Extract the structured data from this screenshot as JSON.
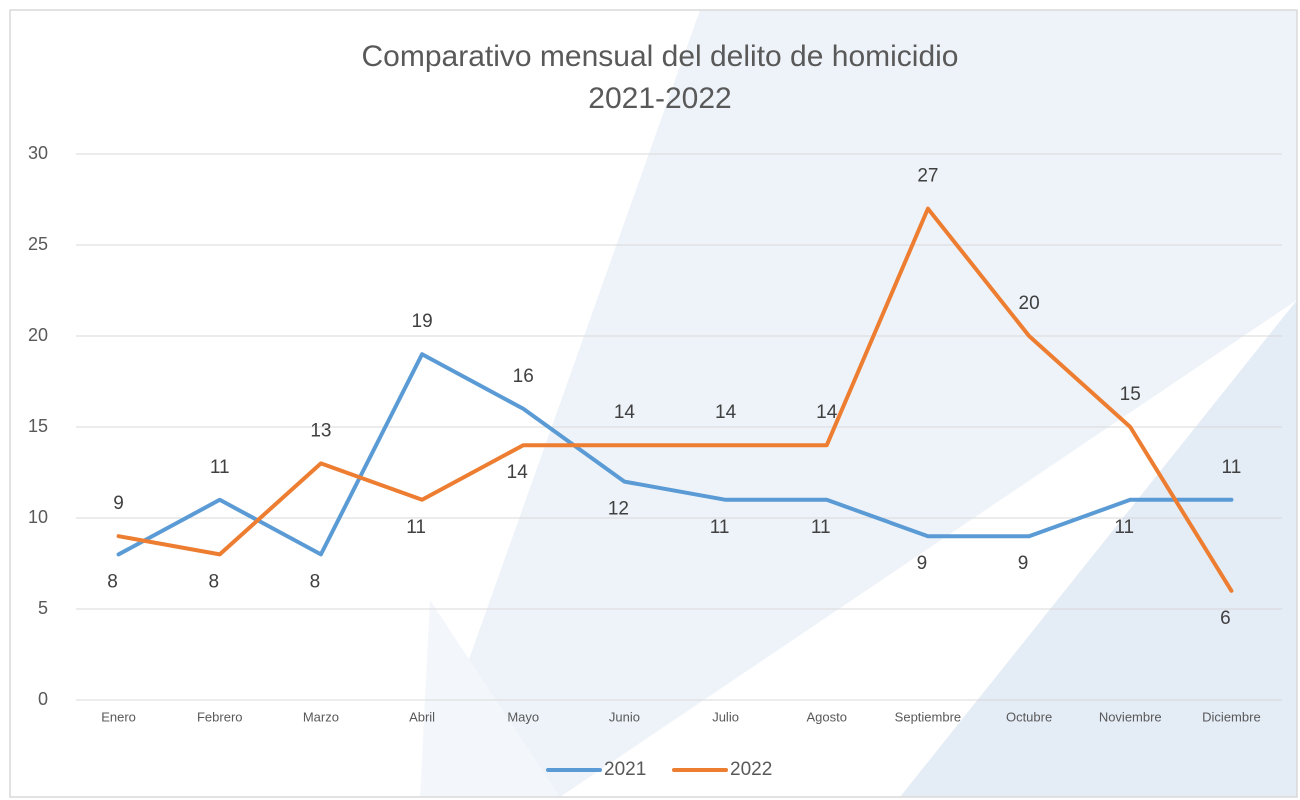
{
  "chart_data": {
    "type": "line",
    "title": "Comparativo mensual del delito de homicidio",
    "subtitle": "2021-2022",
    "categories": [
      "Enero",
      "Febrero",
      "Marzo",
      "Abril",
      "Mayo",
      "Junio",
      "Julio",
      "Agosto",
      "Septiembre",
      "Octubre",
      "Noviembre",
      "Diciembre"
    ],
    "series": [
      {
        "name": "2021",
        "color": "#5b9bd5",
        "values": [
          8,
          11,
          8,
          19,
          16,
          12,
          11,
          11,
          9,
          9,
          11,
          11
        ]
      },
      {
        "name": "2022",
        "color": "#ed7d31",
        "values": [
          9,
          8,
          13,
          11,
          14,
          14,
          14,
          14,
          27,
          20,
          15,
          6
        ]
      }
    ],
    "ylim": [
      0,
      30
    ],
    "yticks": [
      0,
      5,
      10,
      15,
      20,
      25,
      30
    ],
    "grid": true,
    "legend": "bottom"
  }
}
